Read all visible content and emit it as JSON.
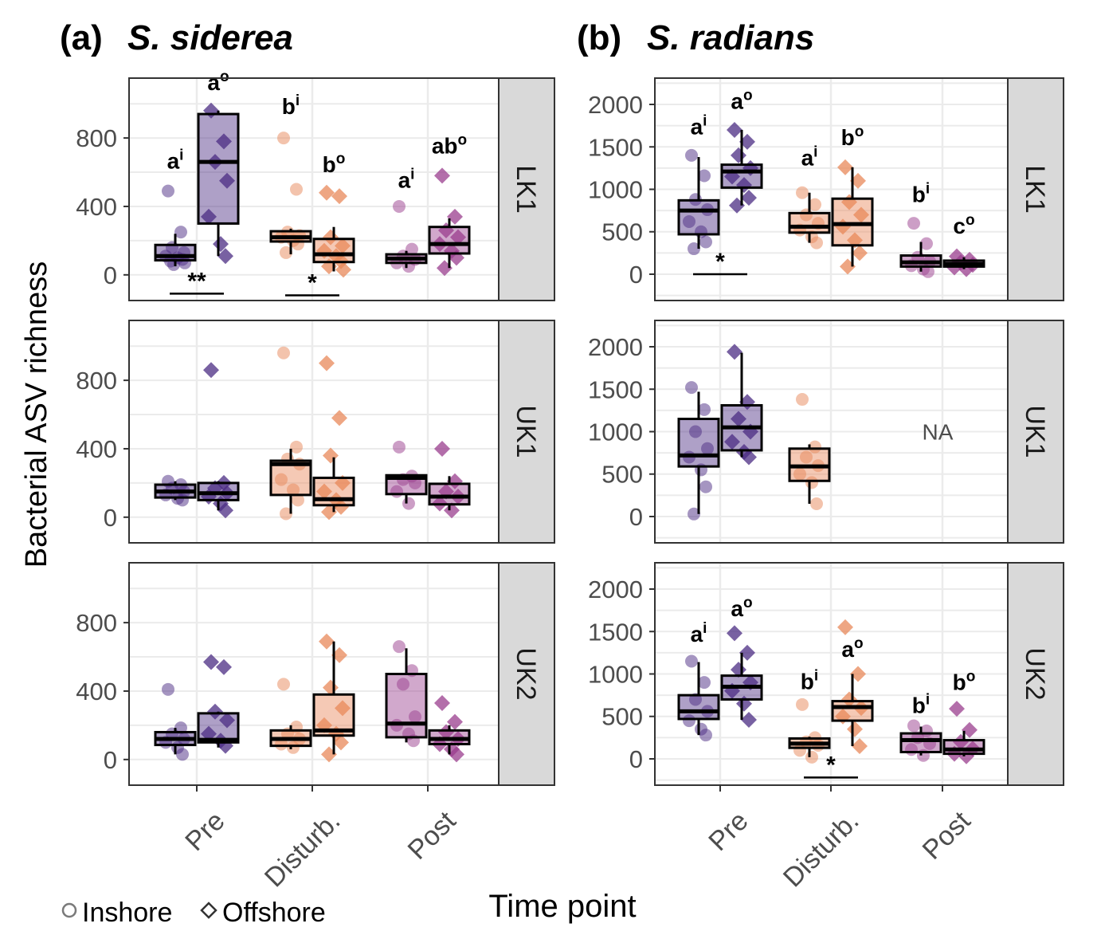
{
  "figure": {
    "y_axis_label": "Bacterial ASV richness",
    "x_axis_label": "Time point",
    "legend": [
      {
        "label": "Inshore",
        "shape": "circle"
      },
      {
        "label": "Offshore",
        "shape": "diamond"
      }
    ]
  },
  "colors": {
    "Pre": "#4b2c83",
    "Disturb.": "#e8885a",
    "Post": "#9a3e8e",
    "strip_bg": "#d9d9d9",
    "grid": "#ebebeb",
    "outline": "#333333"
  },
  "chart_data": [
    {
      "panel": "a",
      "letter": "(a)",
      "species": "S. siderea",
      "type": "box",
      "categories": [
        "Pre",
        "Disturb.",
        "Post"
      ],
      "ylim": [
        -150,
        1150
      ],
      "yticks": [
        0,
        400,
        800
      ],
      "rows": [
        {
          "site": "LK1",
          "boxes": [
            {
              "time": "Pre",
              "group": "Inshore",
              "q1": 85,
              "median": 110,
              "q3": 175,
              "lo": 50,
              "hi": 240,
              "points": [
                490,
                250,
                160,
                130,
                110,
                100,
                90,
                80,
                70,
                60
              ]
            },
            {
              "time": "Pre",
              "group": "Offshore",
              "q1": 300,
              "median": 660,
              "q3": 940,
              "lo": 110,
              "hi": 960,
              "points": [
                960,
                780,
                660,
                550,
                340,
                180,
                110
              ]
            },
            {
              "time": "Disturb.",
              "group": "Inshore",
              "q1": 195,
              "median": 220,
              "q3": 255,
              "lo": 120,
              "hi": 270,
              "points": [
                800,
                500,
                250,
                230,
                220,
                200,
                180,
                130
              ]
            },
            {
              "time": "Disturb.",
              "group": "Offshore",
              "q1": 75,
              "median": 120,
              "q3": 210,
              "lo": 20,
              "hi": 280,
              "points": [
                480,
                460,
                220,
                170,
                140,
                110,
                80,
                50,
                30
              ]
            },
            {
              "time": "Post",
              "group": "Inshore",
              "q1": 70,
              "median": 95,
              "q3": 120,
              "lo": 40,
              "hi": 140,
              "points": [
                400,
                150,
                110,
                90,
                70,
                50
              ]
            },
            {
              "time": "Post",
              "group": "Offshore",
              "q1": 125,
              "median": 180,
              "q3": 280,
              "lo": 40,
              "hi": 330,
              "points": [
                580,
                340,
                260,
                220,
                180,
                140,
                100,
                40
              ]
            }
          ],
          "annotations": [
            {
              "time": "Pre",
              "group": "Inshore",
              "base": "a",
              "sup": "i",
              "y": 620
            },
            {
              "time": "Pre",
              "group": "Offshore",
              "base": "a",
              "sup": "o",
              "y": 1080
            },
            {
              "time": "Disturb.",
              "group": "Inshore",
              "base": "b",
              "sup": "i",
              "y": 940
            },
            {
              "time": "Disturb.",
              "group": "Offshore",
              "base": "b",
              "sup": "o",
              "y": 600
            },
            {
              "time": "Post",
              "group": "Inshore",
              "base": "a",
              "sup": "i",
              "y": 510
            },
            {
              "time": "Post",
              "group": "Offshore",
              "base": "ab",
              "sup": "o",
              "y": 710
            }
          ],
          "significance": [
            {
              "time": "Pre",
              "stars": "**",
              "y": -110
            },
            {
              "time": "Disturb.",
              "stars": "*",
              "y": -120
            }
          ]
        },
        {
          "site": "UK1",
          "boxes": [
            {
              "time": "Pre",
              "group": "Inshore",
              "q1": 115,
              "median": 150,
              "q3": 190,
              "lo": 100,
              "hi": 210,
              "points": [
                210,
                190,
                170,
                150,
                130,
                110,
                100
              ]
            },
            {
              "time": "Pre",
              "group": "Offshore",
              "q1": 100,
              "median": 140,
              "q3": 200,
              "lo": 40,
              "hi": 210,
              "points": [
                860,
                200,
                170,
                140,
                120,
                80,
                40
              ]
            },
            {
              "time": "Disturb.",
              "group": "Inshore",
              "q1": 130,
              "median": 310,
              "q3": 330,
              "lo": 20,
              "hi": 400,
              "points": [
                960,
                410,
                340,
                310,
                220,
                160,
                100,
                20
              ]
            },
            {
              "time": "Disturb.",
              "group": "Offshore",
              "q1": 70,
              "median": 105,
              "q3": 230,
              "lo": 30,
              "hi": 350,
              "points": [
                900,
                580,
                360,
                200,
                150,
                100,
                60,
                30
              ]
            },
            {
              "time": "Post",
              "group": "Inshore",
              "q1": 135,
              "median": 230,
              "q3": 245,
              "lo": 80,
              "hi": 250,
              "points": [
                410,
                240,
                220,
                200,
                150,
                80
              ]
            },
            {
              "time": "Post",
              "group": "Offshore",
              "q1": 75,
              "median": 120,
              "q3": 195,
              "lo": 40,
              "hi": 240,
              "points": [
                400,
                210,
                150,
                120,
                80,
                40
              ]
            }
          ],
          "annotations": [],
          "significance": []
        },
        {
          "site": "UK2",
          "boxes": [
            {
              "time": "Pre",
              "group": "Inshore",
              "q1": 85,
              "median": 120,
              "q3": 160,
              "lo": 30,
              "hi": 185,
              "points": [
                410,
                185,
                150,
                120,
                100,
                70,
                30
              ]
            },
            {
              "time": "Pre",
              "group": "Offshore",
              "q1": 100,
              "median": 115,
              "q3": 270,
              "lo": 70,
              "hi": 280,
              "points": [
                570,
                540,
                280,
                230,
                150,
                110,
                80
              ]
            },
            {
              "time": "Disturb.",
              "group": "Inshore",
              "q1": 80,
              "median": 120,
              "q3": 170,
              "lo": 60,
              "hi": 200,
              "points": [
                440,
                190,
                150,
                120,
                90,
                70
              ]
            },
            {
              "time": "Disturb.",
              "group": "Offshore",
              "q1": 140,
              "median": 170,
              "q3": 380,
              "lo": 30,
              "hi": 690,
              "points": [
                690,
                610,
                420,
                300,
                200,
                150,
                100,
                30
              ]
            },
            {
              "time": "Post",
              "group": "Inshore",
              "q1": 130,
              "median": 210,
              "q3": 500,
              "lo": 100,
              "hi": 650,
              "points": [
                660,
                520,
                440,
                250,
                200,
                150,
                110
              ]
            },
            {
              "time": "Post",
              "group": "Offshore",
              "q1": 90,
              "median": 120,
              "q3": 170,
              "lo": 30,
              "hi": 200,
              "points": [
                330,
                220,
                160,
                120,
                90,
                60,
                30
              ]
            }
          ],
          "annotations": [],
          "significance": []
        }
      ]
    },
    {
      "panel": "b",
      "letter": "(b)",
      "species": "S. radians",
      "type": "box",
      "categories": [
        "Pre",
        "Disturb.",
        "Post"
      ],
      "ylim": [
        -310,
        2310
      ],
      "yticks": [
        0,
        500,
        1000,
        1500,
        2000
      ],
      "rows": [
        {
          "site": "LK1",
          "boxes": [
            {
              "time": "Pre",
              "group": "Inshore",
              "q1": 470,
              "median": 750,
              "q3": 870,
              "lo": 300,
              "hi": 1380,
              "points": [
                1400,
                1160,
                880,
                760,
                620,
                500,
                380,
                300
              ]
            },
            {
              "time": "Pre",
              "group": "Offshore",
              "q1": 1020,
              "median": 1210,
              "q3": 1290,
              "lo": 810,
              "hi": 1700,
              "points": [
                1700,
                1560,
                1400,
                1250,
                1150,
                1050,
                900,
                810
              ]
            },
            {
              "time": "Disturb.",
              "group": "Inshore",
              "q1": 490,
              "median": 560,
              "q3": 720,
              "lo": 370,
              "hi": 960,
              "points": [
                960,
                820,
                700,
                600,
                520,
                440,
                370
              ]
            },
            {
              "time": "Disturb.",
              "group": "Offshore",
              "q1": 340,
              "median": 590,
              "q3": 890,
              "lo": 90,
              "hi": 1260,
              "points": [
                1260,
                1100,
                850,
                700,
                560,
                400,
                250,
                90
              ]
            },
            {
              "time": "Post",
              "group": "Inshore",
              "q1": 90,
              "median": 140,
              "q3": 220,
              "lo": 30,
              "hi": 380,
              "points": [
                600,
                360,
                200,
                150,
                100,
                60,
                30
              ]
            },
            {
              "time": "Post",
              "group": "Offshore",
              "q1": 90,
              "median": 120,
              "q3": 160,
              "lo": 60,
              "hi": 200,
              "points": [
                210,
                170,
                140,
                110,
                80,
                60
              ]
            }
          ],
          "annotations": [
            {
              "time": "Pre",
              "group": "Inshore",
              "base": "a",
              "sup": "i",
              "y": 1650
            },
            {
              "time": "Pre",
              "group": "Offshore",
              "base": "a",
              "sup": "o",
              "y": 1950
            },
            {
              "time": "Disturb.",
              "group": "Inshore",
              "base": "a",
              "sup": "i",
              "y": 1280
            },
            {
              "time": "Disturb.",
              "group": "Offshore",
              "base": "b",
              "sup": "o",
              "y": 1520
            },
            {
              "time": "Post",
              "group": "Inshore",
              "base": "b",
              "sup": "i",
              "y": 850
            },
            {
              "time": "Post",
              "group": "Offshore",
              "base": "c",
              "sup": "o",
              "y": 480
            }
          ],
          "significance": [
            {
              "time": "Pre",
              "stars": "*",
              "y": 0
            }
          ]
        },
        {
          "site": "UK1",
          "boxes": [
            {
              "time": "Pre",
              "group": "Inshore",
              "q1": 590,
              "median": 720,
              "q3": 1150,
              "lo": 30,
              "hi": 1470,
              "points": [
                1520,
                1260,
                1000,
                800,
                700,
                550,
                350,
                30
              ]
            },
            {
              "time": "Pre",
              "group": "Offshore",
              "q1": 780,
              "median": 1050,
              "q3": 1310,
              "lo": 700,
              "hi": 1930,
              "points": [
                1940,
                1350,
                1150,
                1000,
                880,
                760,
                700
              ]
            },
            {
              "time": "Disturb.",
              "group": "Inshore",
              "q1": 420,
              "median": 590,
              "q3": 800,
              "lo": 150,
              "hi": 850,
              "points": [
                1380,
                820,
                700,
                600,
                500,
                400,
                150
              ]
            }
          ],
          "annotations": [],
          "significance": [],
          "na_label": {
            "time": "Post",
            "text": "NA",
            "y": 1000
          }
        },
        {
          "site": "UK2",
          "boxes": [
            {
              "time": "Pre",
              "group": "Inshore",
              "q1": 470,
              "median": 560,
              "q3": 750,
              "lo": 280,
              "hi": 1140,
              "points": [
                1150,
                900,
                700,
                560,
                450,
                350,
                280
              ]
            },
            {
              "time": "Pre",
              "group": "Offshore",
              "q1": 700,
              "median": 850,
              "q3": 980,
              "lo": 460,
              "hi": 1250,
              "points": [
                1480,
                1250,
                1050,
                900,
                800,
                650,
                460
              ]
            },
            {
              "time": "Disturb.",
              "group": "Inshore",
              "q1": 130,
              "median": 180,
              "q3": 240,
              "lo": 20,
              "hi": 260,
              "points": [
                640,
                250,
                200,
                160,
                100,
                20
              ]
            },
            {
              "time": "Disturb.",
              "group": "Offshore",
              "q1": 450,
              "median": 610,
              "q3": 680,
              "lo": 150,
              "hi": 1000,
              "points": [
                1550,
                1000,
                700,
                600,
                500,
                350,
                150
              ]
            },
            {
              "time": "Post",
              "group": "Inshore",
              "q1": 80,
              "median": 220,
              "q3": 300,
              "lo": 40,
              "hi": 380,
              "points": [
                390,
                330,
                250,
                180,
                110,
                40
              ]
            },
            {
              "time": "Post",
              "group": "Offshore",
              "q1": 60,
              "median": 110,
              "q3": 220,
              "lo": 30,
              "hi": 330,
              "points": [
                590,
                340,
                200,
                120,
                60,
                30
              ]
            }
          ],
          "annotations": [
            {
              "time": "Pre",
              "group": "Inshore",
              "base": "a",
              "sup": "i",
              "y": 1380
            },
            {
              "time": "Pre",
              "group": "Offshore",
              "base": "a",
              "sup": "o",
              "y": 1680
            },
            {
              "time": "Disturb.",
              "group": "Inshore",
              "base": "b",
              "sup": "i",
              "y": 820
            },
            {
              "time": "Disturb.",
              "group": "Offshore",
              "base": "a",
              "sup": "o",
              "y": 1200
            },
            {
              "time": "Post",
              "group": "Inshore",
              "base": "b",
              "sup": "i",
              "y": 540
            },
            {
              "time": "Post",
              "group": "Offshore",
              "base": "b",
              "sup": "o",
              "y": 810
            }
          ],
          "significance": [
            {
              "time": "Disturb.",
              "stars": "*",
              "y": -220
            }
          ]
        }
      ]
    }
  ]
}
